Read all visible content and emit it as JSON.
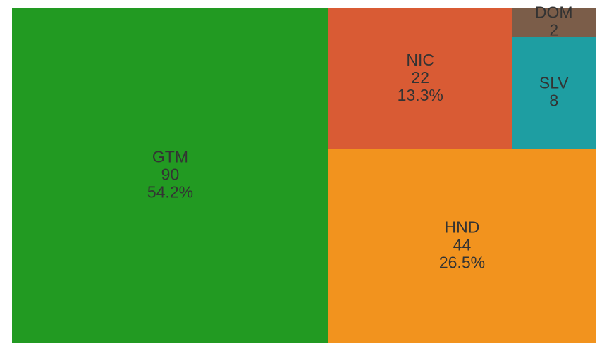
{
  "chart_data": {
    "type": "treemap",
    "categories": [
      "GTM",
      "HND",
      "NIC",
      "SLV",
      "DOM"
    ],
    "values": [
      90,
      44,
      22,
      8,
      2
    ],
    "value_labels": [
      "54.2%",
      "26.5%",
      "13.3%",
      null,
      null
    ],
    "colors": [
      "#229a22",
      "#f2931e",
      "#d95b34",
      "#1e9ea2",
      "#7b5d49"
    ]
  }
}
